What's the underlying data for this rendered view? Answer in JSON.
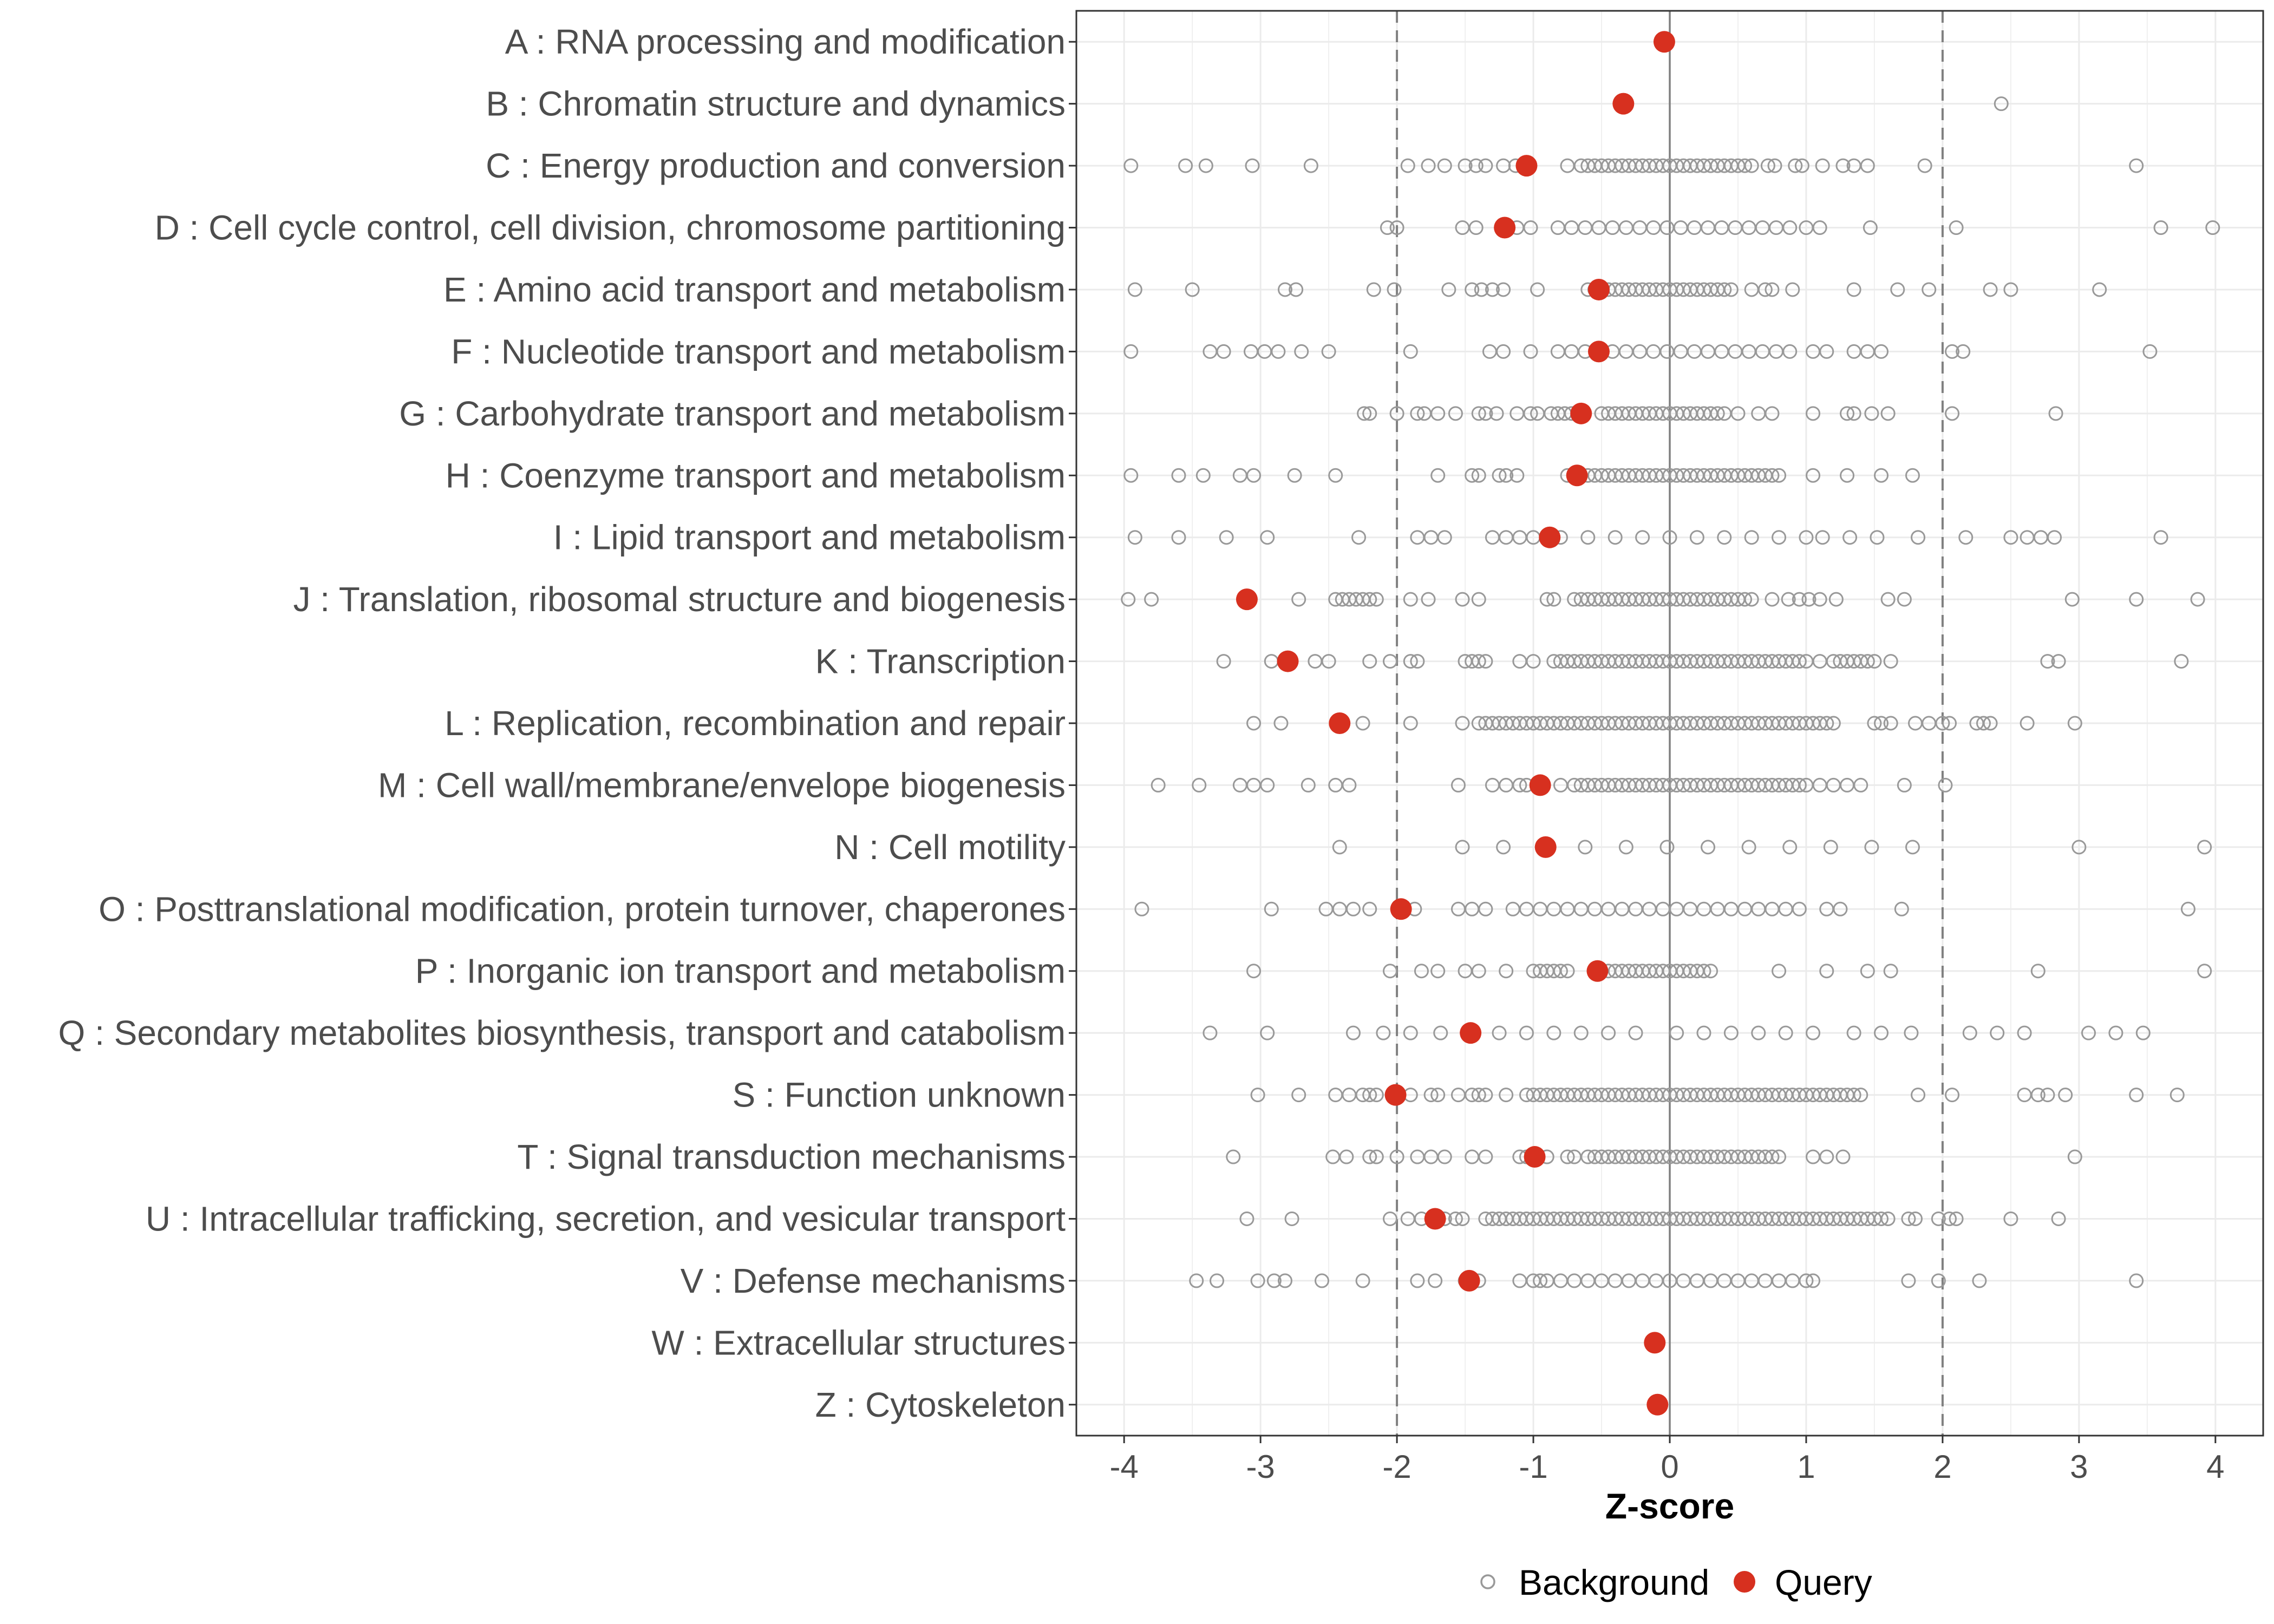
{
  "chart_data": {
    "type": "scatter",
    "title": "",
    "xlabel": "Z-score",
    "ylabel": "",
    "xlim": [
      -4.35,
      4.35
    ],
    "xticks": [
      -4,
      -3,
      -2,
      -1,
      0,
      1,
      2,
      3,
      4
    ],
    "xtick_labels": [
      "-4",
      "-3",
      "-2",
      "-1",
      "0",
      "1",
      "2",
      "3",
      "4"
    ],
    "reference_lines": {
      "dashed": [
        -2,
        2
      ],
      "solid": [
        0
      ]
    },
    "grid": true,
    "legend_position": "bottom",
    "legend": [
      {
        "name": "Background",
        "style": "open-circle",
        "color": "#999999"
      },
      {
        "name": "Query",
        "style": "filled-circle",
        "color": "#d7301f"
      }
    ],
    "categories": [
      "A : RNA processing and modification",
      "B : Chromatin structure and dynamics",
      "C : Energy production and conversion",
      "D : Cell cycle control, cell division, chromosome partitioning",
      "E : Amino acid transport and metabolism",
      "F : Nucleotide transport and metabolism",
      "G : Carbohydrate transport and metabolism",
      "H : Coenzyme transport and metabolism",
      "I : Lipid transport and metabolism",
      "J : Translation, ribosomal structure and biogenesis",
      "K : Transcription",
      "L : Replication, recombination and repair",
      "M : Cell wall/membrane/envelope biogenesis",
      "N : Cell motility",
      "O : Posttranslational modification, protein turnover, chaperones",
      "P : Inorganic ion transport and metabolism",
      "Q : Secondary metabolites biosynthesis, transport and catabolism",
      "S : Function unknown",
      "T : Signal transduction mechanisms",
      "U : Intracellular trafficking, secretion, and vesicular transport",
      "V : Defense mechanisms",
      "W : Extracellular structures",
      "Z : Cytoskeleton"
    ],
    "series": [
      {
        "name": "Query",
        "values": [
          -0.04,
          -0.34,
          -1.05,
          -1.21,
          -0.52,
          -0.52,
          -0.65,
          -0.68,
          -0.88,
          -3.1,
          -2.8,
          -2.42,
          -0.95,
          -0.91,
          -1.97,
          -0.53,
          -1.46,
          -2.01,
          -0.99,
          -1.72,
          -1.47,
          -0.11,
          -0.09
        ]
      },
      {
        "name": "Background",
        "points": [
          [],
          [
            2.43
          ],
          [
            -3.95,
            -3.55,
            -3.4,
            -3.06,
            -2.63,
            -1.92,
            -1.77,
            -1.65,
            -1.5,
            -1.42,
            -1.35,
            -1.22,
            -1.13,
            -0.75,
            -0.65,
            -0.6,
            -0.55,
            -0.5,
            -0.45,
            -0.4,
            -0.35,
            -0.3,
            -0.25,
            -0.2,
            -0.15,
            -0.1,
            -0.05,
            0,
            0.05,
            0.1,
            0.15,
            0.2,
            0.25,
            0.3,
            0.35,
            0.4,
            0.45,
            0.5,
            0.55,
            0.6,
            0.72,
            0.77,
            0.92,
            0.97,
            1.12,
            1.27,
            1.35,
            1.45,
            1.87,
            3.42
          ],
          [
            -2.07,
            -2.0,
            -1.52,
            -1.42,
            -1.12,
            -1.02,
            -0.82,
            -0.72,
            -0.62,
            -0.52,
            -0.42,
            -0.32,
            -0.22,
            -0.12,
            -0.02,
            0.08,
            0.18,
            0.28,
            0.38,
            0.48,
            0.58,
            0.68,
            0.78,
            0.88,
            1.0,
            1.1,
            1.47,
            2.1,
            3.6,
            3.98
          ],
          [
            -3.92,
            -3.5,
            -2.82,
            -2.74,
            -2.17,
            -2.02,
            -1.62,
            -1.45,
            -1.38,
            -1.3,
            -1.22,
            -0.97,
            -0.6,
            -0.55,
            -0.45,
            -0.4,
            -0.35,
            -0.3,
            -0.25,
            -0.2,
            -0.15,
            -0.1,
            -0.05,
            0,
            0.05,
            0.1,
            0.15,
            0.2,
            0.25,
            0.3,
            0.35,
            0.4,
            0.45,
            0.6,
            0.7,
            0.75,
            0.9,
            1.35,
            1.67,
            1.9,
            2.35,
            2.5,
            3.15
          ],
          [
            -3.95,
            -3.37,
            -3.27,
            -3.07,
            -2.97,
            -2.87,
            -2.7,
            -2.5,
            -1.9,
            -1.32,
            -1.22,
            -1.02,
            -0.82,
            -0.72,
            -0.62,
            -0.42,
            -0.32,
            -0.22,
            -0.12,
            -0.02,
            0.08,
            0.18,
            0.28,
            0.38,
            0.48,
            0.58,
            0.68,
            0.78,
            0.88,
            1.05,
            1.15,
            1.35,
            1.45,
            1.55,
            2.07,
            2.15,
            3.52
          ],
          [
            -2.24,
            -2.2,
            -2.0,
            -1.85,
            -1.8,
            -1.7,
            -1.57,
            -1.4,
            -1.35,
            -1.27,
            -1.12,
            -1.02,
            -0.97,
            -0.87,
            -0.82,
            -0.77,
            -0.72,
            -0.5,
            -0.45,
            -0.4,
            -0.35,
            -0.3,
            -0.25,
            -0.2,
            -0.15,
            -0.1,
            -0.05,
            0,
            0.05,
            0.1,
            0.15,
            0.2,
            0.25,
            0.3,
            0.35,
            0.4,
            0.5,
            0.65,
            0.75,
            1.05,
            1.3,
            1.35,
            1.48,
            1.6,
            2.07,
            2.83
          ],
          [
            -3.95,
            -3.6,
            -3.42,
            -3.15,
            -3.05,
            -2.75,
            -2.45,
            -1.7,
            -1.45,
            -1.4,
            -1.25,
            -1.2,
            -1.12,
            -0.75,
            -0.6,
            -0.55,
            -0.5,
            -0.45,
            -0.4,
            -0.35,
            -0.3,
            -0.25,
            -0.2,
            -0.15,
            -0.1,
            -0.05,
            0,
            0.05,
            0.1,
            0.15,
            0.2,
            0.25,
            0.3,
            0.35,
            0.4,
            0.45,
            0.5,
            0.55,
            0.6,
            0.65,
            0.7,
            0.75,
            0.8,
            1.05,
            1.3,
            1.55,
            1.78
          ],
          [
            -3.92,
            -3.6,
            -3.25,
            -2.95,
            -2.28,
            -1.85,
            -1.75,
            -1.65,
            -1.3,
            -1.2,
            -1.1,
            -1.0,
            -0.8,
            -0.6,
            -0.4,
            -0.2,
            0,
            0.2,
            0.4,
            0.6,
            0.8,
            1.0,
            1.12,
            1.32,
            1.52,
            1.82,
            2.17,
            2.5,
            2.62,
            2.72,
            2.82,
            3.6
          ],
          [
            -3.97,
            -3.8,
            -3.12,
            -2.72,
            -2.45,
            -2.4,
            -2.35,
            -2.3,
            -2.25,
            -2.2,
            -2.15,
            -1.9,
            -1.77,
            -1.52,
            -1.4,
            -0.9,
            -0.85,
            -0.7,
            -0.65,
            -0.6,
            -0.55,
            -0.5,
            -0.45,
            -0.4,
            -0.35,
            -0.3,
            -0.25,
            -0.2,
            -0.15,
            -0.1,
            -0.05,
            0,
            0.05,
            0.1,
            0.15,
            0.2,
            0.25,
            0.3,
            0.35,
            0.4,
            0.45,
            0.5,
            0.55,
            0.6,
            0.75,
            0.87,
            0.95,
            1.02,
            1.1,
            1.22,
            1.6,
            1.72,
            2.95,
            3.42,
            3.87
          ],
          [
            -3.27,
            -2.92,
            -2.6,
            -2.5,
            -2.2,
            -2.05,
            -1.9,
            -1.85,
            -1.5,
            -1.45,
            -1.4,
            -1.35,
            -1.1,
            -1.0,
            -0.85,
            -0.8,
            -0.75,
            -0.7,
            -0.65,
            -0.6,
            -0.55,
            -0.5,
            -0.45,
            -0.4,
            -0.35,
            -0.3,
            -0.25,
            -0.2,
            -0.15,
            -0.1,
            -0.05,
            0,
            0.05,
            0.1,
            0.15,
            0.2,
            0.25,
            0.3,
            0.35,
            0.4,
            0.45,
            0.5,
            0.55,
            0.6,
            0.65,
            0.7,
            0.75,
            0.8,
            0.85,
            0.9,
            0.95,
            1.0,
            1.1,
            1.2,
            1.25,
            1.3,
            1.35,
            1.4,
            1.45,
            1.5,
            1.62,
            2.77,
            2.85,
            3.75
          ],
          [
            -3.05,
            -2.85,
            -2.25,
            -1.9,
            -1.52,
            -1.4,
            -1.35,
            -1.3,
            -1.25,
            -1.2,
            -1.15,
            -1.1,
            -1.05,
            -1.0,
            -0.95,
            -0.9,
            -0.85,
            -0.8,
            -0.75,
            -0.7,
            -0.65,
            -0.6,
            -0.55,
            -0.5,
            -0.45,
            -0.4,
            -0.35,
            -0.3,
            -0.25,
            -0.2,
            -0.15,
            -0.1,
            -0.05,
            0,
            0.05,
            0.1,
            0.15,
            0.2,
            0.25,
            0.3,
            0.35,
            0.4,
            0.45,
            0.5,
            0.55,
            0.6,
            0.65,
            0.7,
            0.75,
            0.8,
            0.85,
            0.9,
            0.95,
            1.0,
            1.05,
            1.1,
            1.15,
            1.2,
            1.5,
            1.55,
            1.62,
            1.8,
            1.9,
            2.0,
            2.05,
            2.25,
            2.3,
            2.35,
            2.62,
            2.97
          ],
          [
            -3.75,
            -3.45,
            -3.15,
            -3.05,
            -2.95,
            -2.65,
            -2.45,
            -2.35,
            -1.55,
            -1.3,
            -1.2,
            -1.1,
            -1.05,
            -0.8,
            -0.7,
            -0.65,
            -0.6,
            -0.55,
            -0.5,
            -0.45,
            -0.4,
            -0.35,
            -0.3,
            -0.25,
            -0.2,
            -0.15,
            -0.1,
            -0.05,
            0,
            0.05,
            0.1,
            0.15,
            0.2,
            0.25,
            0.3,
            0.35,
            0.4,
            0.45,
            0.5,
            0.55,
            0.6,
            0.65,
            0.7,
            0.75,
            0.8,
            0.85,
            0.9,
            0.95,
            1.0,
            1.1,
            1.2,
            1.3,
            1.4,
            1.72,
            2.02
          ],
          [
            -2.42,
            -1.52,
            -1.22,
            -0.62,
            -0.32,
            -0.02,
            0.28,
            0.58,
            0.88,
            1.18,
            1.48,
            1.78,
            3.0,
            3.92
          ],
          [
            -3.87,
            -2.92,
            -2.52,
            -2.42,
            -2.32,
            -2.2,
            -1.87,
            -1.55,
            -1.45,
            -1.35,
            -1.15,
            -1.05,
            -0.95,
            -0.85,
            -0.75,
            -0.65,
            -0.55,
            -0.45,
            -0.35,
            -0.25,
            -0.15,
            -0.05,
            0.05,
            0.15,
            0.25,
            0.35,
            0.45,
            0.55,
            0.65,
            0.75,
            0.85,
            0.95,
            1.15,
            1.25,
            1.7,
            3.8
          ],
          [
            -3.05,
            -2.05,
            -1.82,
            -1.7,
            -1.5,
            -1.4,
            -1.2,
            -1.0,
            -0.95,
            -0.9,
            -0.85,
            -0.8,
            -0.75,
            -0.45,
            -0.4,
            -0.35,
            -0.3,
            -0.25,
            -0.2,
            -0.15,
            -0.1,
            -0.05,
            0,
            0.05,
            0.1,
            0.15,
            0.2,
            0.25,
            0.3,
            0.8,
            1.15,
            1.45,
            1.62,
            2.7,
            3.92
          ],
          [
            -3.37,
            -2.95,
            -2.32,
            -2.1,
            -1.9,
            -1.68,
            -1.25,
            -1.05,
            -0.85,
            -0.65,
            -0.45,
            -0.25,
            0.05,
            0.25,
            0.45,
            0.65,
            0.85,
            1.05,
            1.35,
            1.55,
            1.77,
            2.2,
            2.4,
            2.6,
            3.07,
            3.27,
            3.47
          ],
          [
            -3.02,
            -2.72,
            -2.45,
            -2.35,
            -2.25,
            -2.2,
            -2.15,
            -1.9,
            -1.75,
            -1.7,
            -1.55,
            -1.45,
            -1.4,
            -1.35,
            -1.2,
            -1.05,
            -1.0,
            -0.95,
            -0.9,
            -0.85,
            -0.8,
            -0.75,
            -0.7,
            -0.65,
            -0.6,
            -0.55,
            -0.5,
            -0.45,
            -0.4,
            -0.35,
            -0.3,
            -0.25,
            -0.2,
            -0.15,
            -0.1,
            -0.05,
            0,
            0.05,
            0.1,
            0.15,
            0.2,
            0.25,
            0.3,
            0.35,
            0.4,
            0.45,
            0.5,
            0.55,
            0.6,
            0.65,
            0.7,
            0.75,
            0.8,
            0.85,
            0.9,
            0.95,
            1.0,
            1.05,
            1.1,
            1.15,
            1.2,
            1.25,
            1.3,
            1.35,
            1.4,
            1.82,
            2.07,
            2.6,
            2.7,
            2.77,
            2.9,
            3.42,
            3.72
          ],
          [
            -3.2,
            -2.47,
            -2.37,
            -2.2,
            -2.15,
            -2.0,
            -1.85,
            -1.75,
            -1.65,
            -1.45,
            -1.35,
            -1.1,
            -1.05,
            -0.9,
            -0.75,
            -0.7,
            -0.6,
            -0.55,
            -0.5,
            -0.45,
            -0.4,
            -0.35,
            -0.3,
            -0.25,
            -0.2,
            -0.15,
            -0.1,
            -0.05,
            0,
            0.05,
            0.1,
            0.15,
            0.2,
            0.25,
            0.3,
            0.35,
            0.4,
            0.45,
            0.5,
            0.55,
            0.6,
            0.65,
            0.7,
            0.75,
            0.8,
            1.05,
            1.15,
            1.27,
            2.97
          ],
          [
            -3.1,
            -2.77,
            -2.05,
            -1.92,
            -1.82,
            -1.65,
            -1.57,
            -1.52,
            -1.35,
            -1.3,
            -1.25,
            -1.2,
            -1.15,
            -1.1,
            -1.05,
            -1.0,
            -0.95,
            -0.9,
            -0.85,
            -0.8,
            -0.75,
            -0.7,
            -0.65,
            -0.6,
            -0.55,
            -0.5,
            -0.45,
            -0.4,
            -0.35,
            -0.3,
            -0.25,
            -0.2,
            -0.15,
            -0.1,
            -0.05,
            0,
            0.05,
            0.1,
            0.15,
            0.2,
            0.25,
            0.3,
            0.35,
            0.4,
            0.45,
            0.5,
            0.55,
            0.6,
            0.65,
            0.7,
            0.75,
            0.8,
            0.85,
            0.9,
            0.95,
            1.0,
            1.05,
            1.1,
            1.15,
            1.2,
            1.25,
            1.3,
            1.35,
            1.4,
            1.45,
            1.5,
            1.55,
            1.6,
            1.75,
            1.8,
            1.97,
            2.05,
            2.1,
            2.5,
            2.85
          ],
          [
            -3.47,
            -3.32,
            -3.02,
            -2.9,
            -2.82,
            -2.55,
            -2.25,
            -1.85,
            -1.72,
            -1.5,
            -1.4,
            -1.1,
            -1.0,
            -0.95,
            -0.9,
            -0.8,
            -0.7,
            -0.6,
            -0.5,
            -0.4,
            -0.3,
            -0.2,
            -0.1,
            0,
            0.1,
            0.2,
            0.3,
            0.4,
            0.5,
            0.6,
            0.7,
            0.8,
            0.9,
            1.0,
            1.05,
            1.75,
            1.97,
            2.27,
            3.42
          ],
          [],
          []
        ]
      }
    ]
  }
}
